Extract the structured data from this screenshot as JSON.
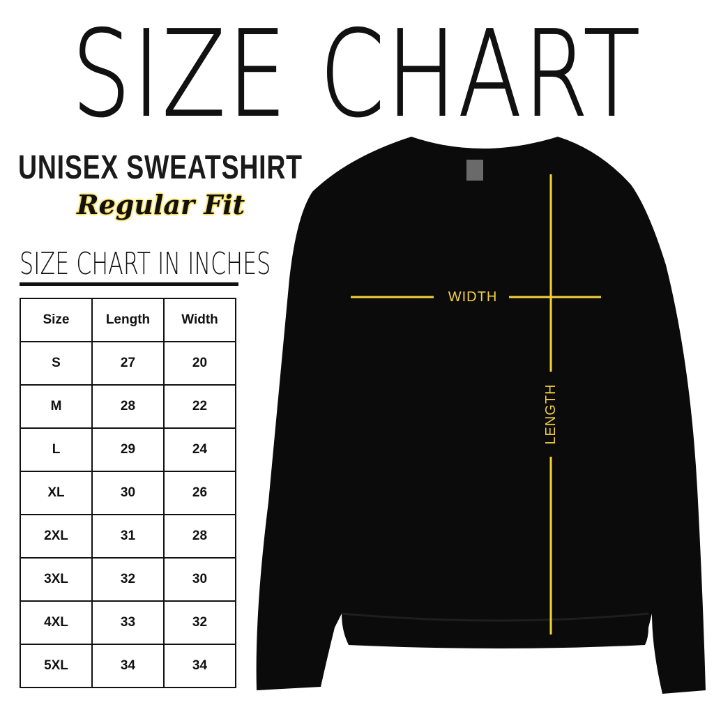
{
  "title": "SIZE CHART",
  "product": "UNISEX SWEATSHIRT",
  "fit": "Regular Fit",
  "table_title": "SIZE CHART IN INCHES",
  "table": {
    "headers": [
      "Size",
      "Length",
      "Width"
    ],
    "rows": [
      [
        "S",
        "27",
        "20"
      ],
      [
        "M",
        "28",
        "22"
      ],
      [
        "L",
        "29",
        "24"
      ],
      [
        "XL",
        "30",
        "26"
      ],
      [
        "2XL",
        "31",
        "28"
      ],
      [
        "3XL",
        "32",
        "30"
      ],
      [
        "4XL",
        "33",
        "32"
      ],
      [
        "5XL",
        "34",
        "34"
      ]
    ]
  },
  "diagram": {
    "width_label": "WIDTH",
    "length_label": "LENGTH",
    "line_color": "#f4d23c",
    "garment_color": "#0b0b0b"
  }
}
